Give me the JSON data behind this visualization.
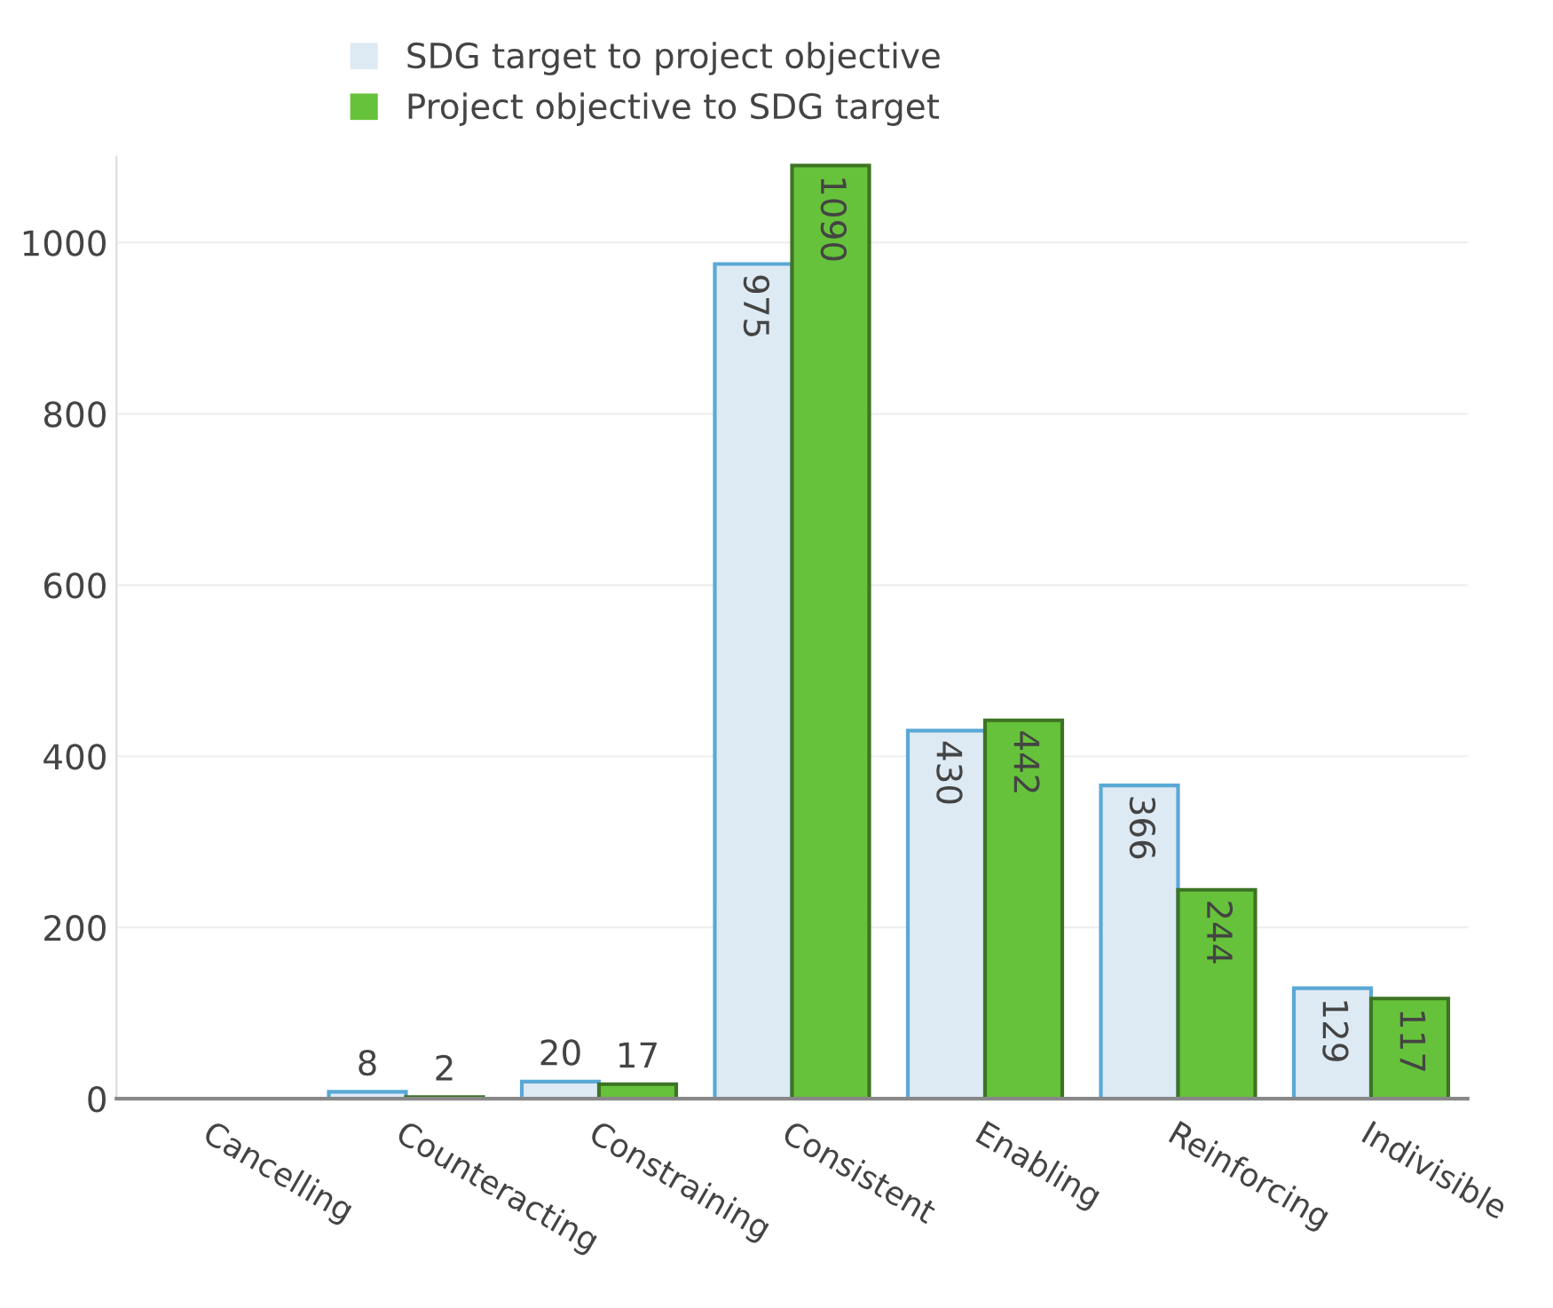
{
  "chart_data": {
    "type": "bar",
    "categories": [
      "Cancelling",
      "Counteracting",
      "Constraining",
      "Consistent",
      "Enabling",
      "Reinforcing",
      "Indivisible"
    ],
    "series": [
      {
        "name": "SDG target to project objective",
        "color": "#ddeaf4",
        "values": [
          0,
          8,
          20,
          975,
          430,
          366,
          129
        ],
        "value_labels": [
          null,
          "8",
          "20",
          "975",
          "430",
          "366",
          "129"
        ]
      },
      {
        "name": "Project objective to SDG target",
        "color": "#66c23a",
        "values": [
          0,
          2,
          17,
          1090,
          442,
          244,
          117
        ],
        "value_labels": [
          null,
          "2",
          "17",
          "1090",
          "442",
          "244",
          "117"
        ]
      }
    ],
    "ylim": [
      0,
      1100
    ],
    "yticks": [
      0,
      200,
      400,
      600,
      800,
      1000
    ],
    "grid": "y",
    "legend": "top left"
  }
}
